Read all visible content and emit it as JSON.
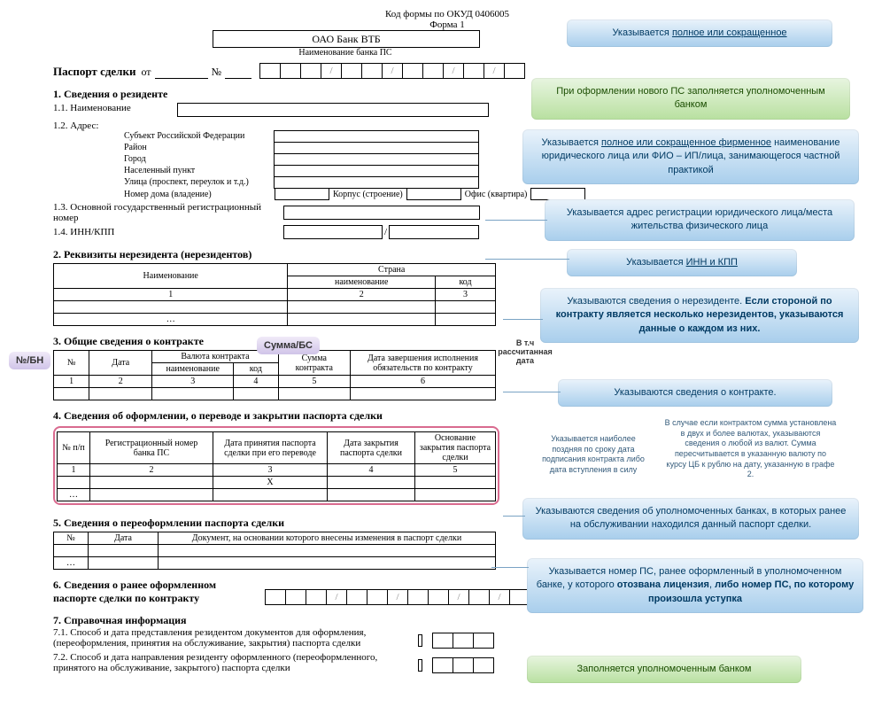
{
  "okud": "Код формы по ОКУД 0406005",
  "form": "Форма 1",
  "bank_name": "ОАО Банк ВТБ",
  "bank_sub": "Наименование банка ПС",
  "ps_title": "Паспорт сделки",
  "ot": "от",
  "num": "№",
  "slash": "/",
  "sec1": "1. Сведения о резиденте",
  "s11": "1.1. Наименование",
  "s12": "1.2. Адрес:",
  "addr": {
    "a1": "Субъект Российской Федерации",
    "a2": "Район",
    "a3": "Город",
    "a4": "Населенный пункт",
    "a5": "Улица (проспект, переулок и т.д.)",
    "a6": "Номер дома (владение)",
    "korpus": "Корпус (строение)",
    "ofis": "Офис (квартира)"
  },
  "s13": "1.3. Основной государственный регистрационный номер",
  "s14": "1.4. ИНН/КПП",
  "sec2": "2. Реквизиты нерезидента (нерезидентов)",
  "t2": {
    "h1": "Наименование",
    "h2": "Страна",
    "h21": "наименование",
    "h22": "код",
    "n1": "1",
    "n2": "2",
    "n3": "3",
    "dots": "…"
  },
  "sec3": "3. Общие сведения о контракте",
  "t3": {
    "h1": "№",
    "h2": "Дата",
    "h3": "Валюта контракта",
    "h31": "наименование",
    "h32": "код",
    "h4": "Сумма контракта",
    "h5": "Дата завершения исполнения обязательств по контракту",
    "n1": "1",
    "n2": "2",
    "n3": "3",
    "n4": "4",
    "n5": "5",
    "n6": "6"
  },
  "sec4": "4. Сведения об оформлении, о переводе и закрытии паспорта сделки",
  "t4": {
    "h0": "№ п/п",
    "h1": "Регистрационный номер банка ПС",
    "h2": "Дата принятия паспорта сделки при его переводе",
    "h3": "Дата закрытия паспорта сделки",
    "h4": "Основание закрытия паспорта сделки",
    "n1": "1",
    "n2": "2",
    "n3": "3",
    "n4": "4",
    "n5": "5",
    "x": "X",
    "dots": "…"
  },
  "sec5": "5. Сведения о переоформлении паспорта сделки",
  "t5": {
    "h1": "№",
    "h2": "Дата",
    "h3": "Документ, на основании которого внесены изменения в паспорт сделки",
    "dots": "…"
  },
  "sec6": "6. Сведения о ранее оформленном паспорте сделки по контракту",
  "sec7": "7. Справочная информация",
  "s71": "7.1. Способ  и дата представления резидентом документов для оформления, (переоформления, принятия на обслуживание, закрытия) паспорта сделки",
  "s72": "7.2. Способ  и дата направления резиденту оформленного (переоформленного, принятого на обслуживание, закрытого) паспорта сделки",
  "labels": {
    "nbn": "№/БН",
    "summa": "Сумма/БС",
    "vtch": "В т.ч рассчитанная дата"
  },
  "callouts": {
    "c1": "Указывается <u>полное или сокращенное</u>",
    "c2": "При оформлении нового ПС заполняется уполномоченным банком",
    "c3": "Указывается <u>полное или сокращенное фирменное</u> наименование юридического лица или ФИО – ИП/лица, занимающегося частной практикой",
    "c4": "Указывается адрес регистрации юридического лица/места жительства физического лица",
    "c5": "Указывается <u>ИНН и КПП</u>",
    "c6": "Указываются сведения о нерезиденте. <b>Если стороной по контракту является несколько нерезидентов, указываются данные о каждом из них.</b>",
    "c7": "Указываются сведения о контракте.",
    "c8": "Указываются сведения об уполномоченных банках, в которых ранее на обслуживании находился данный паспорт сделки.",
    "c9": "Указывается номер ПС, ранее оформленный в уполномоченном банке, у которого <b>отозвана лицензия</b>, <b>либо номер ПС, по которому  произошла уступка</b>",
    "c10": "Заполняется уполномоченным банком",
    "note1": "Указывается наиболее поздняя по сроку дата подписания контракта либо дата вступления в силу",
    "note2": "В случае если контрактом сумма установлена в двух и более валютах, указываются сведения о любой из валют. Сумма пересчитывается в указанную валюту по курсу ЦБ к рублю на дату, указанную в графе 2."
  }
}
